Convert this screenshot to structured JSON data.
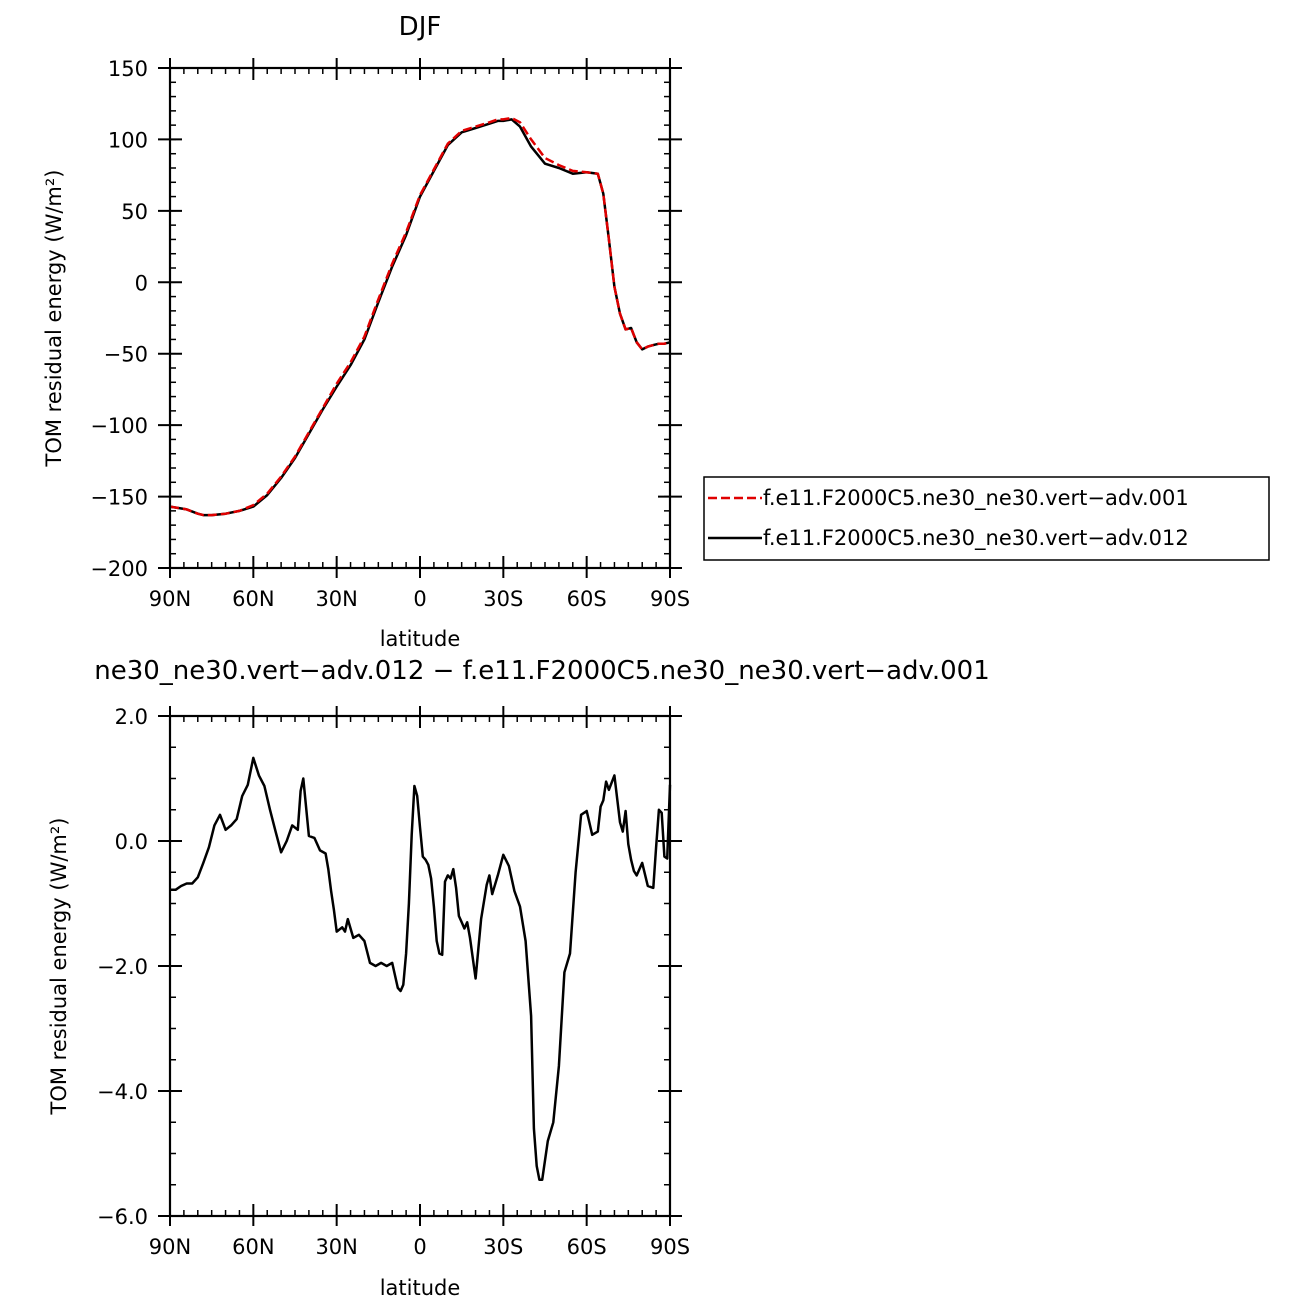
{
  "chart_data": [
    {
      "type": "line",
      "title": "DJF",
      "xlabel": "latitude",
      "ylabel": "TOM residual energy (W/m²)",
      "ylim": [
        -200,
        150
      ],
      "yticks": [
        150,
        100,
        50,
        0,
        -50,
        -100,
        -150,
        -200
      ],
      "ytick_labels": [
        "150",
        "100",
        "50",
        "0",
        "−50",
        "−100",
        "−150",
        "−200"
      ],
      "xlim": [
        -90,
        90
      ],
      "x_reversed": true,
      "xticks": [
        90,
        60,
        30,
        0,
        -30,
        -60,
        -90
      ],
      "xtick_labels": [
        "90N",
        "60N",
        "30N",
        "0",
        "30S",
        "60S",
        "90S"
      ],
      "legend_position": "right",
      "series": [
        {
          "name": "f.e11.F2000C5.ne30_ne30.vert−adv.001",
          "color": "#e00000",
          "dash": "dashed",
          "x": [
            90,
            84,
            80,
            78,
            75,
            70,
            65,
            60,
            55,
            50,
            45,
            40,
            35,
            30,
            25,
            20,
            15,
            10,
            5,
            0,
            -5,
            -10,
            -15,
            -20,
            -25,
            -28,
            -30,
            -33,
            -36,
            -40,
            -45,
            -50,
            -55,
            -60,
            -64,
            -66,
            -68,
            -70,
            -72,
            -74,
            -76,
            -78,
            -80,
            -82,
            -84,
            -86,
            -88,
            -90
          ],
          "y": [
            -157,
            -159,
            -162,
            -163,
            -163,
            -162,
            -160,
            -156,
            -148,
            -136,
            -122,
            -105,
            -88,
            -71,
            -56,
            -38,
            -12,
            13,
            35,
            61,
            79,
            97,
            106,
            109,
            112,
            114,
            114,
            115,
            112,
            100,
            87,
            82,
            78,
            77,
            76,
            62,
            30,
            -3,
            -22,
            -33,
            -32,
            -42,
            -47,
            -45,
            -44,
            -43,
            -43,
            -42
          ]
        },
        {
          "name": "f.e11.F2000C5.ne30_ne30.vert−adv.012",
          "color": "#000000",
          "dash": "solid",
          "x": [
            90,
            84,
            80,
            78,
            75,
            70,
            65,
            60,
            55,
            50,
            45,
            40,
            35,
            30,
            25,
            20,
            15,
            10,
            5,
            0,
            -5,
            -10,
            -15,
            -20,
            -25,
            -28,
            -30,
            -33,
            -36,
            -40,
            -45,
            -50,
            -55,
            -60,
            -64,
            -66,
            -68,
            -70,
            -72,
            -74,
            -76,
            -78,
            -80,
            -82,
            -84,
            -86,
            -88,
            -90
          ],
          "y": [
            -157,
            -159,
            -162,
            -163,
            -163,
            -162,
            -160,
            -157,
            -149,
            -137,
            -123,
            -106,
            -89,
            -73,
            -58,
            -40,
            -14,
            11,
            33,
            60,
            78,
            96,
            105,
            108,
            111,
            113,
            113,
            114,
            109,
            95,
            83,
            80,
            76,
            77,
            76,
            62,
            30,
            -3,
            -22,
            -33,
            -32,
            -42,
            -47,
            -45,
            -44,
            -43,
            -43,
            -42
          ]
        }
      ]
    },
    {
      "type": "line",
      "title": "ne30_ne30.vert−adv.012 − f.e11.F2000C5.ne30_ne30.vert−adv.001",
      "xlabel": "latitude",
      "ylabel": "TOM residual energy (W/m²)",
      "ylim": [
        -6,
        2
      ],
      "yticks": [
        2,
        0,
        -2,
        -4,
        -6
      ],
      "ytick_labels": [
        "2.0",
        "0.0",
        "−2.0",
        "−4.0",
        "−6.0"
      ],
      "xlim": [
        -90,
        90
      ],
      "x_reversed": true,
      "xticks": [
        90,
        60,
        30,
        0,
        -30,
        -60,
        -90
      ],
      "xtick_labels": [
        "90N",
        "60N",
        "30N",
        "0",
        "30S",
        "60S",
        "90S"
      ],
      "series": [
        {
          "color": "#000000",
          "dash": "solid",
          "x": [
            90,
            88,
            86,
            84,
            82,
            80,
            78,
            76,
            74,
            72,
            70,
            68,
            66,
            64,
            62,
            60,
            58,
            56,
            54,
            52,
            50,
            48,
            46,
            44,
            43,
            42,
            40,
            38,
            36,
            34,
            33,
            32,
            31,
            30,
            28,
            27,
            26,
            24,
            22,
            20,
            18,
            16,
            14,
            12,
            10,
            8,
            7,
            6,
            5,
            4,
            3,
            2,
            1,
            0,
            -1,
            -2,
            -3,
            -4,
            -5,
            -6,
            -7,
            -8,
            -9,
            -10,
            -11,
            -12,
            -13,
            -14,
            -15,
            -16,
            -17,
            -18,
            -20,
            -22,
            -24,
            -25,
            -26,
            -28,
            -30,
            -32,
            -34,
            -36,
            -38,
            -40,
            -41,
            -42,
            -43,
            -44,
            -46,
            -48,
            -50,
            -52,
            -54,
            -56,
            -58,
            -60,
            -62,
            -64,
            -65,
            -66,
            -67,
            -68,
            -70,
            -72,
            -73,
            -74,
            -75,
            -76,
            -77,
            -78,
            -80,
            -82,
            -84,
            -85,
            -86,
            -87,
            -88,
            -89,
            -90
          ],
          "y": [
            -0.78,
            -0.78,
            -0.72,
            -0.68,
            -0.68,
            -0.58,
            -0.35,
            -0.1,
            0.25,
            0.42,
            0.18,
            0.25,
            0.35,
            0.72,
            0.9,
            1.33,
            1.05,
            0.88,
            0.5,
            0.15,
            -0.18,
            0.0,
            0.25,
            0.18,
            0.8,
            1.0,
            0.08,
            0.05,
            -0.15,
            -0.2,
            -0.45,
            -0.8,
            -1.1,
            -1.45,
            -1.38,
            -1.45,
            -1.25,
            -1.55,
            -1.5,
            -1.6,
            -1.95,
            -2.0,
            -1.95,
            -2.0,
            -1.95,
            -2.35,
            -2.4,
            -2.3,
            -1.8,
            -1.0,
            0.1,
            0.88,
            0.72,
            0.22,
            -0.25,
            -0.3,
            -0.38,
            -0.6,
            -1.05,
            -1.6,
            -1.8,
            -1.82,
            -0.65,
            -0.55,
            -0.6,
            -0.45,
            -0.75,
            -1.2,
            -1.3,
            -1.4,
            -1.3,
            -1.55,
            -2.2,
            -1.25,
            -0.7,
            -0.55,
            -0.85,
            -0.55,
            -0.22,
            -0.4,
            -0.8,
            -1.05,
            -1.6,
            -2.8,
            -4.6,
            -5.2,
            -5.42,
            -5.42,
            -4.8,
            -4.5,
            -3.6,
            -2.1,
            -1.8,
            -0.5,
            0.42,
            0.48,
            0.1,
            0.15,
            0.55,
            0.65,
            0.95,
            0.82,
            1.05,
            0.3,
            0.15,
            0.48,
            -0.05,
            -0.3,
            -0.48,
            -0.55,
            -0.35,
            -0.72,
            -0.75,
            -0.1,
            0.5,
            0.45,
            -0.25,
            -0.28,
            0.9
          ]
        }
      ]
    }
  ]
}
